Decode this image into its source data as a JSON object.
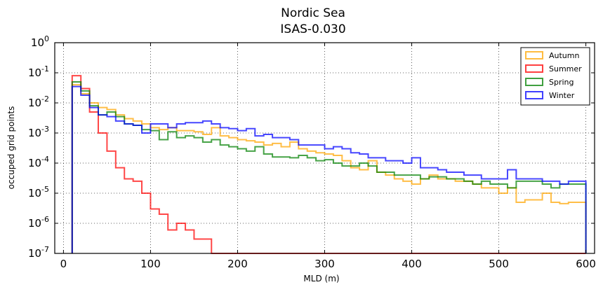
{
  "chart_data": {
    "type": "histogram-step",
    "title": "Nordic Sea",
    "subtitle": "ISAS-0.030",
    "xlabel": "MLD (m)",
    "ylabel": "occuped grid points",
    "xlim": [
      -10,
      610
    ],
    "ylim": [
      1e-07,
      1
    ],
    "yscale": "log",
    "xticks": [
      "0",
      "100",
      "200",
      "300",
      "400",
      "500",
      "600"
    ],
    "yticks": [
      {
        "base": "10",
        "exp": "0"
      },
      {
        "base": "10",
        "exp": "-1"
      },
      {
        "base": "10",
        "exp": "-2"
      },
      {
        "base": "10",
        "exp": "-3"
      },
      {
        "base": "10",
        "exp": "-4"
      },
      {
        "base": "10",
        "exp": "-5"
      },
      {
        "base": "10",
        "exp": "-6"
      },
      {
        "base": "10",
        "exp": "-7"
      }
    ],
    "grid": true,
    "legend_position": "top-right",
    "bin_edges": [
      10,
      20,
      30,
      40,
      50,
      60,
      70,
      80,
      90,
      100,
      110,
      120,
      130,
      140,
      150,
      160,
      170,
      180,
      190,
      200,
      210,
      220,
      230,
      240,
      250,
      260,
      270,
      280,
      290,
      300,
      310,
      320,
      330,
      340,
      350,
      360,
      370,
      380,
      390,
      400,
      410,
      420,
      430,
      440,
      450,
      460,
      470,
      480,
      490,
      500,
      510,
      520,
      530,
      540,
      550,
      560,
      570,
      580,
      590,
      600
    ],
    "series": [
      {
        "name": "Autumn",
        "color": "#FFA500",
        "values": [
          0.04,
          0.02,
          0.01,
          0.007,
          0.006,
          0.004,
          0.003,
          0.0025,
          0.002,
          0.0015,
          0.0013,
          0.0015,
          0.0012,
          0.0012,
          0.0011,
          0.0009,
          0.0015,
          0.0008,
          0.0007,
          0.0006,
          0.00055,
          0.0005,
          0.0004,
          0.00045,
          0.00035,
          0.0005,
          0.0003,
          0.00025,
          0.00022,
          0.0002,
          0.00018,
          0.00012,
          7e-05,
          6e-05,
          0.00012,
          5e-05,
          4e-05,
          3e-05,
          2.5e-05,
          2e-05,
          3e-05,
          4e-05,
          3e-05,
          3e-05,
          2.5e-05,
          2.5e-05,
          2e-05,
          1.5e-05,
          1.5e-05,
          1e-05,
          1.5e-05,
          5e-06,
          6e-06,
          6e-06,
          1e-05,
          5e-06,
          4.5e-06,
          5e-06,
          5e-06
        ]
      },
      {
        "name": "Summer",
        "color": "#FF0000",
        "values": [
          0.08,
          0.03,
          0.005,
          0.001,
          0.00025,
          7e-05,
          3e-05,
          2.5e-05,
          1e-05,
          3e-06,
          2e-06,
          6e-07,
          1e-06,
          6e-07,
          3e-07,
          3e-07,
          1e-07,
          5e-08,
          0,
          0,
          0,
          0,
          0,
          0,
          0,
          0,
          0,
          0,
          0,
          0,
          0,
          0,
          0,
          0,
          0,
          0,
          0,
          0,
          0,
          0,
          0,
          0,
          0,
          0,
          0,
          0,
          0,
          0,
          0,
          0,
          0,
          0,
          0,
          0,
          0,
          0,
          0,
          0,
          0
        ]
      },
      {
        "name": "Spring",
        "color": "#008000",
        "values": [
          0.05,
          0.025,
          0.008,
          0.004,
          0.005,
          0.0035,
          0.002,
          0.0018,
          0.0013,
          0.0012,
          0.0006,
          0.0011,
          0.0007,
          0.0008,
          0.0007,
          0.0005,
          0.0006,
          0.0004,
          0.00035,
          0.0003,
          0.00025,
          0.00035,
          0.0002,
          0.00016,
          0.00016,
          0.00015,
          0.00018,
          0.00015,
          0.00012,
          0.00013,
          0.0001,
          8e-05,
          8e-05,
          0.0001,
          8e-05,
          5e-05,
          5e-05,
          4e-05,
          4e-05,
          4e-05,
          3e-05,
          3.5e-05,
          3.5e-05,
          3e-05,
          3e-05,
          2.5e-05,
          2e-05,
          2.5e-05,
          2e-05,
          2e-05,
          1.5e-05,
          2.5e-05,
          2.5e-05,
          2.5e-05,
          2e-05,
          1.5e-05,
          2e-05,
          2e-05,
          2e-05
        ]
      },
      {
        "name": "Winter",
        "color": "#0000FF",
        "values": [
          0.035,
          0.018,
          0.007,
          0.004,
          0.0035,
          0.0025,
          0.002,
          0.0018,
          0.001,
          0.002,
          0.002,
          0.0015,
          0.002,
          0.0022,
          0.0022,
          0.0025,
          0.002,
          0.0015,
          0.0014,
          0.0012,
          0.0014,
          0.0008,
          0.0009,
          0.0007,
          0.0007,
          0.0006,
          0.0004,
          0.0004,
          0.0004,
          0.0003,
          0.00035,
          0.0003,
          0.00022,
          0.0002,
          0.00015,
          0.00015,
          0.00012,
          0.00012,
          0.0001,
          0.00015,
          7e-05,
          7e-05,
          6e-05,
          5e-05,
          5e-05,
          4e-05,
          4e-05,
          3e-05,
          3e-05,
          3e-05,
          6e-05,
          3e-05,
          3e-05,
          3e-05,
          2.5e-05,
          2.5e-05,
          2e-05,
          2.5e-05,
          2.5e-05
        ]
      }
    ]
  }
}
